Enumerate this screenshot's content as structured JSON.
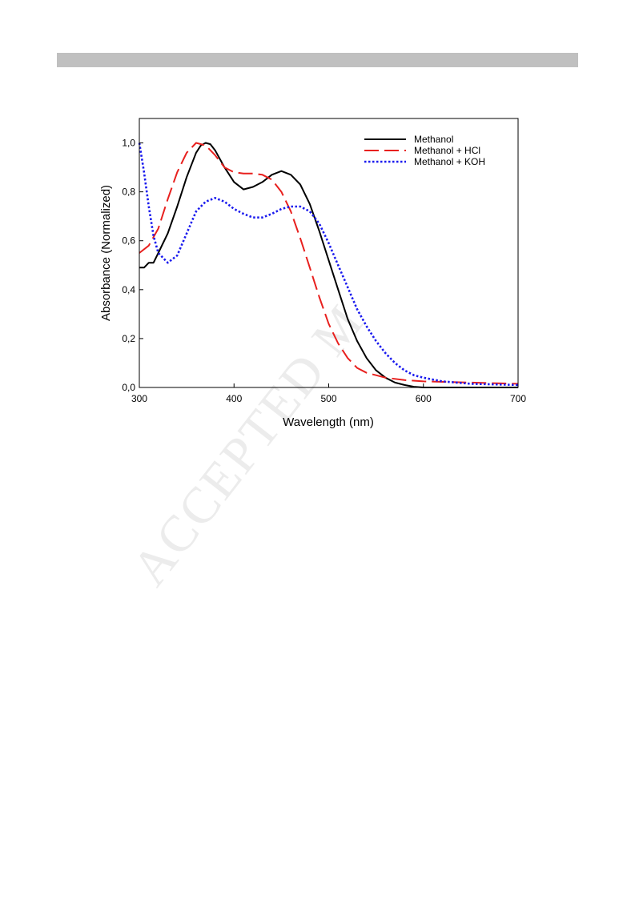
{
  "watermark": {
    "text": "ACCEPTED M"
  },
  "colors": {
    "Methanol": "#000000",
    "Methanol + HCl": "#e8201e",
    "Methanol + KOH": "#1a1aee",
    "header_bar": "#c0c0c0"
  },
  "chart_data": {
    "type": "line",
    "xlabel": "Wavelength (nm)",
    "ylabel": "Absorbance (Normalized)",
    "xlim": [
      300,
      700
    ],
    "ylim": [
      0,
      1.1
    ],
    "x_ticks": [
      300,
      400,
      500,
      600,
      700
    ],
    "y_ticks": [
      0,
      0.2,
      0.4,
      0.6,
      0.8,
      1.0
    ],
    "x_tick_labels": [
      "300",
      "400",
      "500",
      "600",
      "700"
    ],
    "y_tick_labels": [
      "0,0",
      "0,2",
      "0,4",
      "0,6",
      "0,8",
      "1,0"
    ],
    "grid": false,
    "legend_position": "top-right",
    "series": [
      {
        "name": "Methanol",
        "style": "solid",
        "points": [
          [
            300,
            0.49
          ],
          [
            305,
            0.49
          ],
          [
            310,
            0.51
          ],
          [
            315,
            0.51
          ],
          [
            320,
            0.55
          ],
          [
            330,
            0.63
          ],
          [
            340,
            0.74
          ],
          [
            350,
            0.86
          ],
          [
            360,
            0.96
          ],
          [
            365,
            0.99
          ],
          [
            370,
            1.0
          ],
          [
            375,
            0.995
          ],
          [
            380,
            0.97
          ],
          [
            390,
            0.9
          ],
          [
            400,
            0.84
          ],
          [
            410,
            0.81
          ],
          [
            420,
            0.82
          ],
          [
            430,
            0.84
          ],
          [
            440,
            0.87
          ],
          [
            450,
            0.885
          ],
          [
            460,
            0.87
          ],
          [
            470,
            0.83
          ],
          [
            480,
            0.75
          ],
          [
            490,
            0.64
          ],
          [
            500,
            0.52
          ],
          [
            510,
            0.4
          ],
          [
            520,
            0.28
          ],
          [
            530,
            0.19
          ],
          [
            540,
            0.12
          ],
          [
            550,
            0.07
          ],
          [
            560,
            0.04
          ],
          [
            570,
            0.02
          ],
          [
            580,
            0.01
          ],
          [
            590,
            0.003
          ],
          [
            600,
            0.0
          ],
          [
            620,
            0.0
          ],
          [
            650,
            0.0
          ],
          [
            680,
            0.0
          ],
          [
            700,
            0.0
          ]
        ]
      },
      {
        "name": "Methanol + HCl",
        "style": "dashed",
        "points": [
          [
            300,
            0.55
          ],
          [
            310,
            0.58
          ],
          [
            320,
            0.65
          ],
          [
            330,
            0.77
          ],
          [
            340,
            0.88
          ],
          [
            350,
            0.96
          ],
          [
            360,
            1.0
          ],
          [
            370,
            0.99
          ],
          [
            380,
            0.95
          ],
          [
            390,
            0.9
          ],
          [
            400,
            0.88
          ],
          [
            410,
            0.875
          ],
          [
            420,
            0.875
          ],
          [
            430,
            0.87
          ],
          [
            440,
            0.85
          ],
          [
            450,
            0.8
          ],
          [
            460,
            0.72
          ],
          [
            470,
            0.61
          ],
          [
            480,
            0.49
          ],
          [
            490,
            0.37
          ],
          [
            500,
            0.26
          ],
          [
            510,
            0.18
          ],
          [
            520,
            0.12
          ],
          [
            530,
            0.08
          ],
          [
            540,
            0.06
          ],
          [
            550,
            0.05
          ],
          [
            560,
            0.04
          ],
          [
            580,
            0.03
          ],
          [
            600,
            0.025
          ],
          [
            650,
            0.02
          ],
          [
            700,
            0.015
          ]
        ]
      },
      {
        "name": "Methanol + KOH",
        "style": "dotted",
        "points": [
          [
            300,
            1.0
          ],
          [
            305,
            0.88
          ],
          [
            310,
            0.74
          ],
          [
            315,
            0.62
          ],
          [
            320,
            0.55
          ],
          [
            330,
            0.51
          ],
          [
            340,
            0.54
          ],
          [
            350,
            0.63
          ],
          [
            360,
            0.72
          ],
          [
            370,
            0.76
          ],
          [
            380,
            0.775
          ],
          [
            390,
            0.76
          ],
          [
            400,
            0.73
          ],
          [
            410,
            0.71
          ],
          [
            420,
            0.695
          ],
          [
            430,
            0.695
          ],
          [
            440,
            0.71
          ],
          [
            450,
            0.73
          ],
          [
            460,
            0.74
          ],
          [
            470,
            0.74
          ],
          [
            480,
            0.72
          ],
          [
            490,
            0.67
          ],
          [
            500,
            0.59
          ],
          [
            510,
            0.5
          ],
          [
            520,
            0.41
          ],
          [
            530,
            0.32
          ],
          [
            540,
            0.25
          ],
          [
            550,
            0.19
          ],
          [
            560,
            0.14
          ],
          [
            570,
            0.1
          ],
          [
            580,
            0.07
          ],
          [
            590,
            0.05
          ],
          [
            600,
            0.04
          ],
          [
            620,
            0.025
          ],
          [
            650,
            0.015
          ],
          [
            680,
            0.012
          ],
          [
            700,
            0.01
          ]
        ]
      }
    ]
  }
}
